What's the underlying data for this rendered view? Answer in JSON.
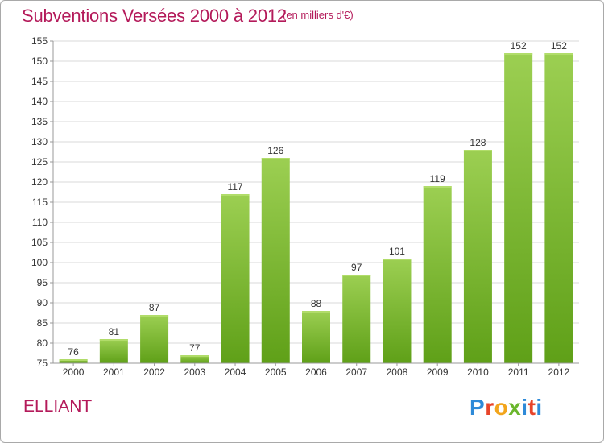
{
  "title": "Subventions Versées 2000 à 2012",
  "subtitle": "(en milliers d'€)",
  "commune": "ELLIANT",
  "logo": {
    "letters": [
      "P",
      "r",
      "o",
      "x",
      "i",
      "t",
      "i"
    ],
    "colors": [
      "#2e8ad8",
      "#e8442a",
      "#f2a51c",
      "#6ab62c",
      "#2e8ad8",
      "#e8442a",
      "#2e8ad8"
    ]
  },
  "colors": {
    "accent": "#b41a5a",
    "bar_top": "#9ccf52",
    "bar_bottom": "#5fa018",
    "grid": "#d9d9d9",
    "axis": "#999999",
    "text": "#333333"
  },
  "chart_data": {
    "type": "bar",
    "title": "Subventions Versées 2000 à 2012",
    "subtitle": "(en milliers d'€)",
    "categories": [
      "2000",
      "2001",
      "2002",
      "2003",
      "2004",
      "2005",
      "2006",
      "2007",
      "2008",
      "2009",
      "2010",
      "2011",
      "2012"
    ],
    "values": [
      76,
      81,
      87,
      77,
      117,
      126,
      88,
      97,
      101,
      119,
      128,
      152,
      152
    ],
    "ylim": [
      75,
      155
    ],
    "yticks": [
      75,
      80,
      85,
      90,
      95,
      100,
      105,
      110,
      115,
      120,
      125,
      130,
      135,
      140,
      145,
      150,
      155
    ],
    "grid": true,
    "legend": "none"
  }
}
